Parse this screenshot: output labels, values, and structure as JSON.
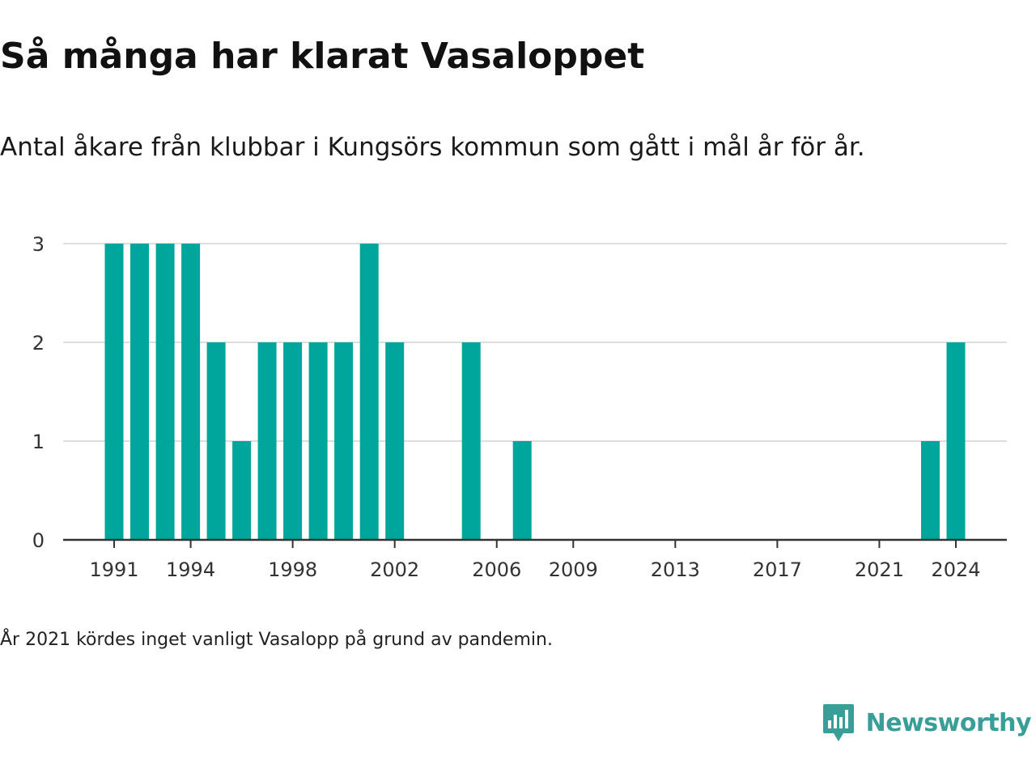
{
  "title": "Så många har klarat Vasaloppet",
  "subtitle": "Antal åkare från klubbar i Kungsörs kommun som gått i mål år för år.",
  "footnote": "År 2021 kördes inget vanligt Vasalopp på grund av pandemin.",
  "brand": {
    "name": "Newsworthy",
    "icon": "newsworthy-logo-icon",
    "color": "#3a9e98"
  },
  "colors": {
    "bar": "#00a59b",
    "grid": "#dddddd",
    "axis": "#333333"
  },
  "chart_data": {
    "type": "bar",
    "x": [
      1991,
      1992,
      1993,
      1994,
      1995,
      1996,
      1997,
      1998,
      1999,
      2000,
      2001,
      2002,
      2005,
      2007,
      2023,
      2024
    ],
    "values": [
      3,
      3,
      3,
      3,
      2,
      1,
      2,
      2,
      2,
      2,
      3,
      2,
      2,
      1,
      1,
      2
    ],
    "xlim": [
      1989,
      2026
    ],
    "ylim": [
      0,
      3
    ],
    "yticks": [
      0,
      1,
      2,
      3
    ],
    "xticks": [
      "1991",
      "1994",
      "1998",
      "2002",
      "2006",
      "2009",
      "2013",
      "2017",
      "2021",
      "2024"
    ],
    "grid": true,
    "legend": "none"
  }
}
